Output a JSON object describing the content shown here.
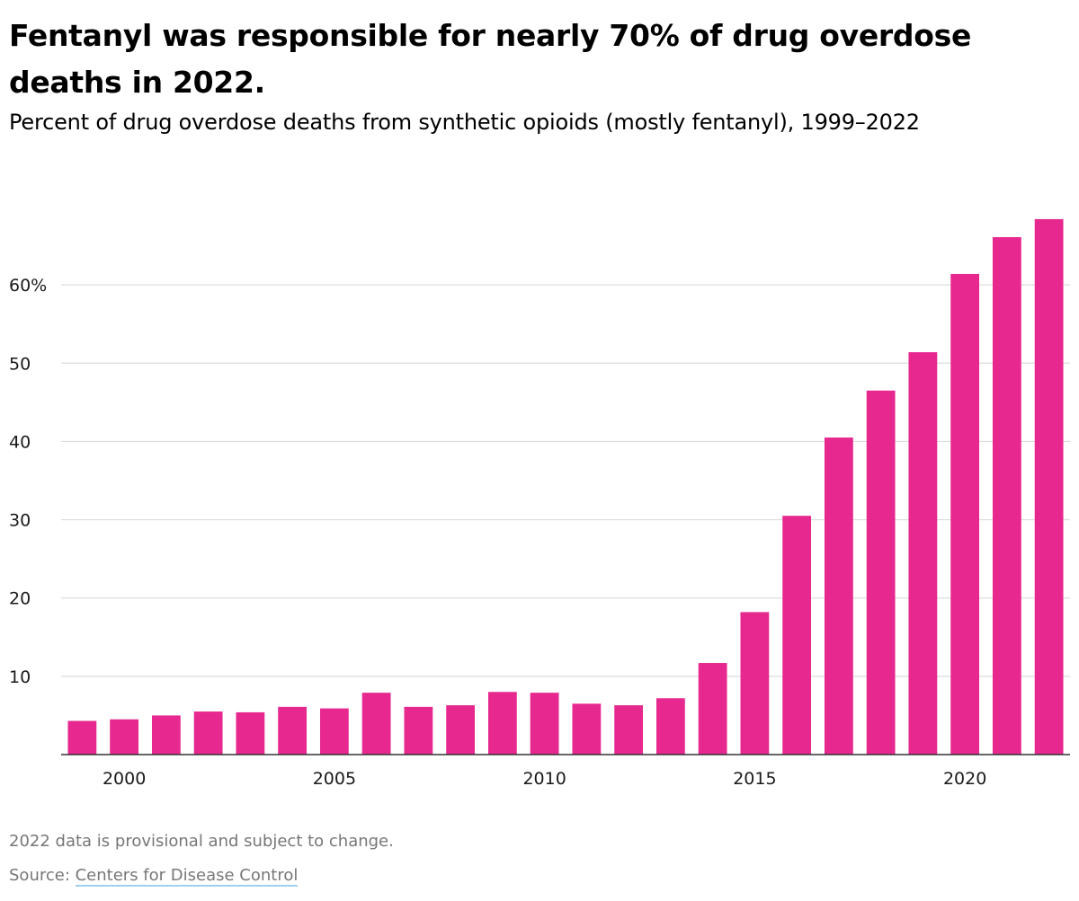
{
  "chart_data": {
    "type": "bar",
    "title": "Fentanyl was responsible for nearly 70% of drug overdose deaths in 2022.",
    "subtitle": "Percent of drug overdose deaths from synthetic opioids (mostly fentanyl), 1999–2022",
    "categories": [
      "1999",
      "2000",
      "2001",
      "2002",
      "2003",
      "2004",
      "2005",
      "2006",
      "2007",
      "2008",
      "2009",
      "2010",
      "2011",
      "2012",
      "2013",
      "2014",
      "2015",
      "2016",
      "2017",
      "2018",
      "2019",
      "2020",
      "2021",
      "2022"
    ],
    "values": [
      4.3,
      4.5,
      5.0,
      5.5,
      5.4,
      6.1,
      5.9,
      7.9,
      6.1,
      6.3,
      8.0,
      7.9,
      6.5,
      6.3,
      7.2,
      11.7,
      18.2,
      30.5,
      40.5,
      46.5,
      51.4,
      61.4,
      66.1,
      68.4
    ],
    "ylim": [
      0,
      70
    ],
    "yticks": [
      10,
      20,
      30,
      40,
      50,
      60
    ],
    "ytick_labels": [
      "10",
      "20",
      "30",
      "40",
      "50",
      "60%"
    ],
    "xticks": [
      "2000",
      "2005",
      "2010",
      "2015",
      "2020"
    ],
    "xlabel": "",
    "ylabel": "",
    "grid": true,
    "legend": "none",
    "bar_color": "#e6288f",
    "grid_color": "#dcdcdc",
    "axis_color": "#333333"
  },
  "footer": {
    "note": "2022 data is provisional and subject to change.",
    "source_prefix": "Source: ",
    "source_link": "Centers for Disease Control"
  }
}
